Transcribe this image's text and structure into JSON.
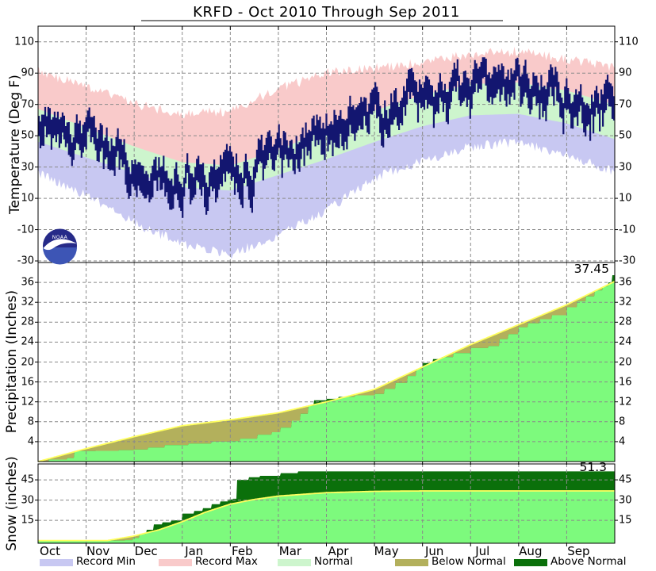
{
  "title": "KRFD - Oct 2010 Through Sep 2011",
  "logo": {
    "text": "NOAA"
  },
  "colors": {
    "record_min": "#c8c8f2",
    "record_max": "#f9caca",
    "normal_band": "#cdf5cd",
    "actual_temp": "#131670",
    "cumulative_actual": "#7dfa7d",
    "below_normal": "#b3b05c",
    "above_normal": "#0b700b",
    "normal_line": "#ffff5e",
    "grid": "#8a8a8a",
    "axis": "#000000",
    "logo_blue": "#262a88",
    "logo_blue_light": "#3d55b5"
  },
  "legend": {
    "items": [
      {
        "label": "Record Min",
        "color_key": "record_min",
        "x": 50
      },
      {
        "label": "Record Max",
        "color_key": "record_max",
        "x": 200
      },
      {
        "label": "Normal",
        "color_key": "normal_band",
        "x": 350
      },
      {
        "label": "Below Normal",
        "color_key": "below_normal",
        "x": 498
      },
      {
        "label": "Above Normal",
        "color_key": "above_normal",
        "x": 648
      }
    ]
  },
  "chart_data": {
    "type": "area",
    "title": "KRFD - Oct 2010 Through Sep 2011",
    "x_months": [
      "Oct",
      "Nov",
      "Dec",
      "Jan",
      "Feb",
      "Mar",
      "Apr",
      "May",
      "Jun",
      "Jul",
      "Aug",
      "Sep"
    ],
    "temperature": {
      "type": "area+line",
      "ylabel": "Temperature (Deg F)",
      "yticks": [
        110,
        90,
        70,
        50,
        30,
        10,
        -10,
        -30
      ],
      "ylim": [
        -31,
        120
      ],
      "anchors_note": "13 monthly anchors, Oct 1 through end of Sep, Deg F (estimated from plot)",
      "record_max": [
        91,
        81,
        70,
        64,
        66,
        80,
        90,
        93,
        97,
        102,
        104,
        99,
        93
      ],
      "record_min": [
        26,
        12,
        -6,
        -19,
        -26,
        -13,
        2,
        23,
        34,
        43,
        46,
        38,
        27
      ],
      "normal_high": [
        67,
        55,
        43,
        33,
        31,
        41,
        54,
        66,
        76,
        83,
        84,
        79,
        70
      ],
      "normal_low": [
        46,
        36,
        26,
        17,
        15,
        25,
        35,
        46,
        56,
        63,
        64,
        58,
        48
      ],
      "actual_high_mean": [
        70,
        53,
        38,
        28,
        31,
        46,
        61,
        70,
        82,
        91,
        90,
        85,
        74
      ],
      "actual_low_mean": [
        52,
        37,
        24,
        13,
        14,
        30,
        44,
        53,
        64,
        70,
        70,
        65,
        56
      ]
    },
    "precipitation": {
      "type": "cumulative-area",
      "ylabel": "Precipitation (Inches)",
      "yticks": [
        36,
        32,
        28,
        24,
        20,
        16,
        12,
        8,
        4
      ],
      "ylim": [
        0,
        40
      ],
      "final_total": 37.45,
      "final_label": "37.45",
      "normal_points": [
        [
          0,
          0
        ],
        [
          0.0833,
          2.6
        ],
        [
          0.1667,
          5.0
        ],
        [
          0.25,
          7.2
        ],
        [
          0.3333,
          8.4
        ],
        [
          0.4167,
          9.8
        ],
        [
          0.5,
          12.0
        ],
        [
          0.5833,
          14.5
        ],
        [
          0.6667,
          19.0
        ],
        [
          0.75,
          23.5
        ],
        [
          0.8333,
          27.5
        ],
        [
          0.9167,
          31.5
        ],
        [
          1,
          36.2
        ]
      ],
      "actual_points": [
        [
          0,
          0
        ],
        [
          0.018,
          0.4
        ],
        [
          0.05,
          0.7
        ],
        [
          0.062,
          2.1
        ],
        [
          0.1,
          2.15
        ],
        [
          0.14,
          2.3
        ],
        [
          0.1667,
          2.4
        ],
        [
          0.19,
          2.8
        ],
        [
          0.22,
          3.3
        ],
        [
          0.26,
          3.6
        ],
        [
          0.3,
          4.0
        ],
        [
          0.3333,
          4.1
        ],
        [
          0.35,
          4.6
        ],
        [
          0.38,
          5.4
        ],
        [
          0.405,
          5.9
        ],
        [
          0.42,
          6.8
        ],
        [
          0.44,
          8.2
        ],
        [
          0.455,
          9.6
        ],
        [
          0.468,
          11.2
        ],
        [
          0.478,
          12.3
        ],
        [
          0.5,
          12.6
        ],
        [
          0.52,
          13.0
        ],
        [
          0.55,
          13.3
        ],
        [
          0.5833,
          13.6
        ],
        [
          0.6,
          14.6
        ],
        [
          0.62,
          15.8
        ],
        [
          0.64,
          17.2
        ],
        [
          0.655,
          18.6
        ],
        [
          0.6667,
          19.8
        ],
        [
          0.685,
          20.6
        ],
        [
          0.7,
          21.0
        ],
        [
          0.72,
          21.8
        ],
        [
          0.75,
          22.8
        ],
        [
          0.78,
          23.2
        ],
        [
          0.8,
          24.6
        ],
        [
          0.815,
          25.6
        ],
        [
          0.8333,
          27.0
        ],
        [
          0.85,
          27.8
        ],
        [
          0.87,
          28.6
        ],
        [
          0.89,
          29.4
        ],
        [
          0.9167,
          31.0
        ],
        [
          0.935,
          32.2
        ],
        [
          0.95,
          33.2
        ],
        [
          0.965,
          34.4
        ],
        [
          0.978,
          35.2
        ],
        [
          0.988,
          36.0
        ],
        [
          0.995,
          37.45
        ],
        [
          1,
          37.45
        ]
      ]
    },
    "snow": {
      "type": "cumulative-area",
      "ylabel": "Snow (inches)",
      "yticks": [
        45,
        30,
        15
      ],
      "ylim": [
        0,
        57
      ],
      "final_total": 51.3,
      "final_label": "51.3",
      "normal_points": [
        [
          0,
          0
        ],
        [
          0.12,
          0
        ],
        [
          0.1667,
          3.4
        ],
        [
          0.21,
          8
        ],
        [
          0.25,
          14
        ],
        [
          0.29,
          21
        ],
        [
          0.3333,
          27
        ],
        [
          0.375,
          30.5
        ],
        [
          0.4167,
          33
        ],
        [
          0.5,
          35.5
        ],
        [
          0.5833,
          36.5
        ],
        [
          0.6667,
          36.8
        ],
        [
          1,
          36.8
        ]
      ],
      "actual_points": [
        [
          0,
          0
        ],
        [
          0.15,
          0.3
        ],
        [
          0.165,
          2
        ],
        [
          0.175,
          5
        ],
        [
          0.188,
          8
        ],
        [
          0.2,
          12
        ],
        [
          0.215,
          13.5
        ],
        [
          0.23,
          15
        ],
        [
          0.25,
          20
        ],
        [
          0.27,
          22
        ],
        [
          0.285,
          24
        ],
        [
          0.3,
          27
        ],
        [
          0.315,
          29
        ],
        [
          0.33,
          30.5
        ],
        [
          0.338,
          31
        ],
        [
          0.345,
          45
        ],
        [
          0.365,
          47
        ],
        [
          0.385,
          48
        ],
        [
          0.42,
          50
        ],
        [
          0.45,
          51.3
        ],
        [
          1,
          51.3
        ]
      ]
    }
  }
}
